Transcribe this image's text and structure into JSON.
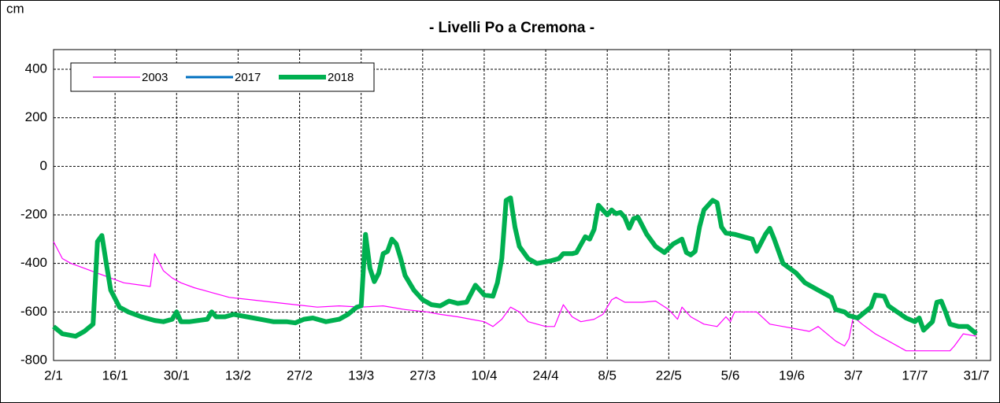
{
  "chart_data": {
    "type": "line",
    "title": "- Livelli Po a Cremona -",
    "y_label": "cm",
    "xlim": [
      0,
      210
    ],
    "xticks": [
      {
        "value": 0,
        "label": "2/1"
      },
      {
        "value": 14,
        "label": "16/1"
      },
      {
        "value": 28,
        "label": "30/1"
      },
      {
        "value": 42,
        "label": "13/2"
      },
      {
        "value": 56,
        "label": "27/2"
      },
      {
        "value": 70,
        "label": "13/3"
      },
      {
        "value": 84,
        "label": "27/3"
      },
      {
        "value": 98,
        "label": "10/4"
      },
      {
        "value": 112,
        "label": "24/4"
      },
      {
        "value": 126,
        "label": "8/5"
      },
      {
        "value": 140,
        "label": "22/5"
      },
      {
        "value": 154,
        "label": "5/6"
      },
      {
        "value": 168,
        "label": "19/6"
      },
      {
        "value": 182,
        "label": "3/7"
      },
      {
        "value": 196,
        "label": "17/7"
      },
      {
        "value": 210,
        "label": "31/7"
      }
    ],
    "ylim": [
      -800,
      400
    ],
    "yticks": [
      400,
      200,
      0,
      -200,
      -400,
      -600,
      -800
    ],
    "grid": true,
    "legend": "top-left",
    "series": [
      {
        "name": "2003",
        "color": "#ff00ff",
        "width": 1.2,
        "x": [
          0,
          2,
          4,
          7,
          10,
          13,
          16,
          20,
          22,
          23,
          25,
          27,
          29,
          32,
          36,
          40,
          45,
          50,
          55,
          60,
          65,
          70,
          75,
          80,
          85,
          88,
          92,
          95,
          98,
          100,
          102,
          104,
          106,
          108,
          112,
          114,
          116,
          118,
          120,
          123,
          125,
          127,
          128,
          130,
          134,
          137,
          140,
          142,
          143,
          145,
          148,
          151,
          153,
          154,
          155,
          158,
          160,
          163,
          166,
          169,
          172,
          174,
          176,
          178,
          180,
          181,
          182,
          184,
          187,
          190,
          194,
          198,
          202,
          204,
          205,
          207,
          210
        ],
        "values": [
          -310,
          -380,
          -400,
          -420,
          -440,
          -460,
          -480,
          -490,
          -495,
          -360,
          -430,
          -460,
          -480,
          -500,
          -520,
          -540,
          -550,
          -560,
          -570,
          -580,
          -575,
          -580,
          -575,
          -590,
          -600,
          -610,
          -620,
          -630,
          -640,
          -660,
          -630,
          -580,
          -600,
          -640,
          -660,
          -660,
          -570,
          -620,
          -640,
          -630,
          -610,
          -550,
          -540,
          -560,
          -560,
          -555,
          -590,
          -630,
          -580,
          -620,
          -650,
          -660,
          -620,
          -640,
          -600,
          -600,
          -600,
          -650,
          -660,
          -670,
          -680,
          -660,
          -690,
          -720,
          -740,
          -710,
          -620,
          -650,
          -690,
          -720,
          -760,
          -760,
          -760,
          -760,
          -740,
          -690,
          -700
        ]
      },
      {
        "name": "2017",
        "color": "#0070c0",
        "width": 3,
        "x": [],
        "values": []
      },
      {
        "name": "2018",
        "color": "#00b050",
        "width": 6,
        "x": [
          0,
          2,
          5,
          7,
          9,
          10,
          11,
          12,
          13,
          15,
          17,
          20,
          23,
          25,
          27,
          28,
          29,
          31,
          33,
          35,
          36,
          37,
          39,
          41,
          44,
          47,
          50,
          53,
          55,
          57,
          59,
          62,
          65,
          67,
          69,
          70,
          71,
          72,
          73,
          74,
          75,
          76,
          77,
          78,
          79,
          80,
          82,
          84,
          86,
          88,
          90,
          92,
          94,
          96,
          98,
          100,
          101,
          102,
          103,
          104,
          105,
          106,
          108,
          110,
          113,
          115,
          116,
          118,
          119,
          121,
          122,
          123,
          124,
          125,
          126,
          127,
          128,
          129,
          130,
          131,
          132,
          133,
          135,
          137,
          139,
          141,
          143,
          144,
          145,
          146,
          147,
          148,
          150,
          151,
          152,
          153,
          155,
          157,
          159,
          160,
          162,
          163,
          164,
          166,
          169,
          171,
          174,
          177,
          178,
          180,
          181,
          183,
          186,
          187,
          189,
          190,
          192,
          194,
          196,
          197,
          198,
          200,
          201,
          202,
          203,
          204,
          206,
          208,
          210
        ],
        "values": [
          -660,
          -690,
          -700,
          -680,
          -650,
          -310,
          -285,
          -400,
          -510,
          -580,
          -600,
          -620,
          -635,
          -640,
          -630,
          -600,
          -640,
          -640,
          -635,
          -630,
          -600,
          -620,
          -620,
          -610,
          -620,
          -630,
          -640,
          -640,
          -645,
          -630,
          -625,
          -640,
          -630,
          -610,
          -580,
          -575,
          -280,
          -420,
          -475,
          -440,
          -360,
          -350,
          -300,
          -320,
          -380,
          -450,
          -510,
          -550,
          -570,
          -575,
          -555,
          -565,
          -560,
          -490,
          -530,
          -535,
          -480,
          -380,
          -140,
          -130,
          -250,
          -330,
          -380,
          -400,
          -390,
          -380,
          -360,
          -360,
          -355,
          -290,
          -300,
          -260,
          -160,
          -180,
          -200,
          -180,
          -195,
          -190,
          -210,
          -255,
          -215,
          -210,
          -280,
          -330,
          -355,
          -320,
          -300,
          -355,
          -365,
          -350,
          -250,
          -180,
          -140,
          -150,
          -250,
          -275,
          -280,
          -290,
          -300,
          -350,
          -280,
          -255,
          -300,
          -400,
          -440,
          -480,
          -510,
          -540,
          -590,
          -600,
          -615,
          -625,
          -580,
          -530,
          -535,
          -575,
          -600,
          -625,
          -640,
          -625,
          -675,
          -640,
          -560,
          -555,
          -600,
          -650,
          -660,
          -660,
          -690
        ]
      }
    ]
  }
}
